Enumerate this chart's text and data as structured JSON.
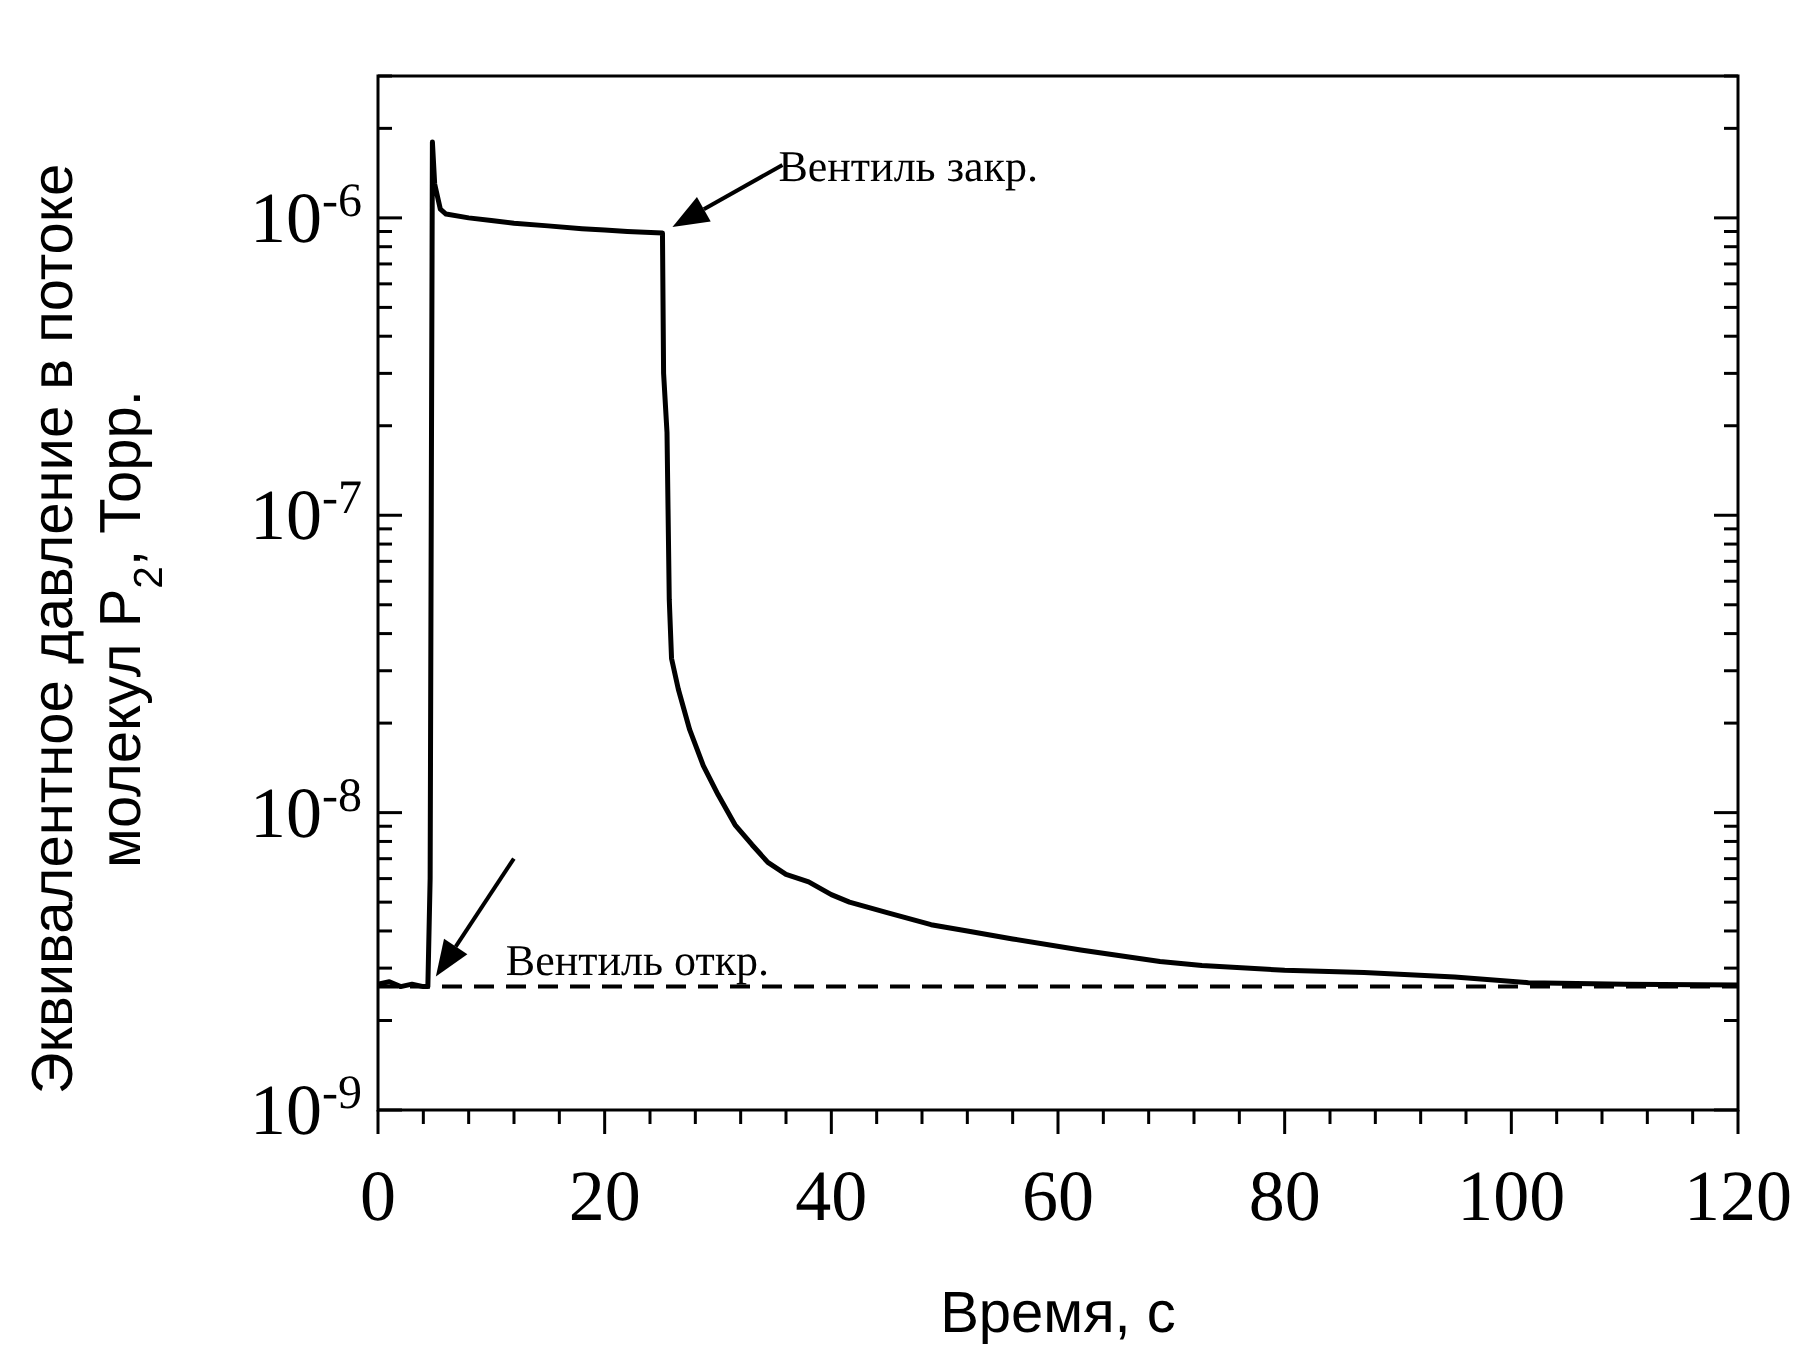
{
  "chart_data": {
    "type": "line",
    "xlabel": "Время, с",
    "ylabel": "Эквивалентное давление в потоке\nмолекул P$_{2}$, Торр.",
    "log": "y",
    "xlim": [
      0,
      120
    ],
    "ylim": [
      1e-09,
      3e-06
    ],
    "xticks": [
      0,
      {
        "value": 4,
        "label": null
      },
      {
        "value": 8,
        "label": null
      },
      {
        "value": 12,
        "label": null
      },
      {
        "value": 16,
        "label": null
      },
      20,
      {
        "value": 24,
        "label": null
      },
      {
        "value": 28,
        "label": null
      },
      {
        "value": 32,
        "label": null
      },
      {
        "value": 36,
        "label": null
      },
      40,
      {
        "value": 44,
        "label": null
      },
      {
        "value": 48,
        "label": null
      },
      {
        "value": 52,
        "label": null
      },
      {
        "value": 56,
        "label": null
      },
      60,
      {
        "value": 64,
        "label": null
      },
      {
        "value": 68,
        "label": null
      },
      {
        "value": 72,
        "label": null
      },
      {
        "value": 76,
        "label": null
      },
      80,
      {
        "value": 84,
        "label": null
      },
      {
        "value": 88,
        "label": null
      },
      {
        "value": 92,
        "label": null
      },
      {
        "value": 96,
        "label": null
      },
      100,
      {
        "value": 104,
        "label": null
      },
      {
        "value": 108,
        "label": null
      },
      {
        "value": 112,
        "label": null
      },
      {
        "value": 116,
        "label": null
      },
      120
    ],
    "yticks": [
      {
        "value": 1e-09,
        "label": "10$^{-9}$"
      },
      {
        "value": 2e-09,
        "label": null
      },
      {
        "value": 3e-09,
        "label": null
      },
      {
        "value": 4e-09,
        "label": null
      },
      {
        "value": 5e-09,
        "label": null
      },
      {
        "value": 6e-09,
        "label": null
      },
      {
        "value": 7e-09,
        "label": null
      },
      {
        "value": 8e-09,
        "label": null
      },
      {
        "value": 9e-09,
        "label": null
      },
      {
        "value": 1e-08,
        "label": "10$^{-8}$"
      },
      {
        "value": 2e-08,
        "label": null
      },
      {
        "value": 3e-08,
        "label": null
      },
      {
        "value": 4e-08,
        "label": null
      },
      {
        "value": 5e-08,
        "label": null
      },
      {
        "value": 6e-08,
        "label": null
      },
      {
        "value": 7e-08,
        "label": null
      },
      {
        "value": 8e-08,
        "label": null
      },
      {
        "value": 9e-08,
        "label": null
      },
      {
        "value": 1e-07,
        "label": "10$^{-7}$"
      },
      {
        "value": 2e-07,
        "label": null
      },
      {
        "value": 3e-07,
        "label": null
      },
      {
        "value": 4e-07,
        "label": null
      },
      {
        "value": 5e-07,
        "label": null
      },
      {
        "value": 6e-07,
        "label": null
      },
      {
        "value": 7e-07,
        "label": null
      },
      {
        "value": 8e-07,
        "label": null
      },
      {
        "value": 9e-07,
        "label": null
      },
      {
        "value": 1e-06,
        "label": "10$^{-6}$"
      },
      {
        "value": 2e-06,
        "label": null
      },
      {
        "value": 3e-06,
        "label": null
      }
    ],
    "grid": false,
    "series": [
      {
        "color": "#000000",
        "x": [
          0,
          1,
          2,
          3,
          4,
          4.4,
          4.6,
          4.8,
          5,
          5.5,
          6,
          8,
          10,
          12,
          15,
          18,
          20,
          22,
          25.1,
          25.2,
          25.5,
          25.7,
          25.9,
          26.5,
          27.5,
          28.7,
          30,
          31.5,
          33,
          34.4,
          36,
          38,
          40,
          41.6,
          45,
          48.8,
          52,
          56,
          62,
          69,
          72.7,
          80,
          87,
          95,
          101.5,
          110,
          120
        ],
        "values": [
          2.65e-09,
          2.7e-09,
          2.6e-09,
          2.65e-09,
          2.6e-09,
          2.6e-09,
          6e-09,
          1.8e-06,
          1.3e-06,
          1.07e-06,
          1.03e-06,
          1e-06,
          9.8e-07,
          9.6e-07,
          9.4e-07,
          9.2e-07,
          9.1e-07,
          9e-07,
          8.9e-07,
          3e-07,
          1.9e-07,
          5.2e-08,
          3.3e-08,
          2.6e-08,
          1.9e-08,
          1.44e-08,
          1.15e-08,
          9.1e-09,
          7.8e-09,
          6.8e-09,
          6.2e-09,
          5.85e-09,
          5.3e-09,
          5e-09,
          4.6e-09,
          4.2e-09,
          4e-09,
          3.76e-09,
          3.45e-09,
          3.16e-09,
          3.06e-09,
          2.95e-09,
          2.9e-09,
          2.8e-09,
          2.68e-09,
          2.65e-09,
          2.63e-09
        ]
      }
    ],
    "ref_lines": [
      {
        "axis": "y",
        "value": 2.6e-09,
        "color": "#000000",
        "line_style": "dashed"
      }
    ],
    "annotations": [
      {
        "text": "Вентиль закр.",
        "x": 25.1,
        "y": 8.9e-07
      },
      {
        "text": "Вентиль откр.",
        "x": 4.4,
        "y": 2.6e-09
      }
    ]
  }
}
